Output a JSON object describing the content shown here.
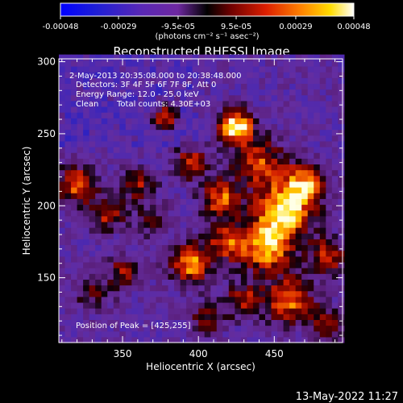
{
  "chart_data": {
    "type": "heatmap",
    "title": "Reconstructed RHESSI Image",
    "xlabel": "Heliocentric X (arcsec)",
    "ylabel": "Heliocentric Y (arcsec)",
    "xlim": [
      308,
      495
    ],
    "ylim": [
      105,
      302
    ],
    "x_ticks": [
      "350",
      "400",
      "450"
    ],
    "x_tick_values": [
      350,
      400,
      450
    ],
    "y_ticks": [
      "150",
      "200",
      "250",
      "300"
    ],
    "y_tick_values": [
      150,
      200,
      250,
      300
    ],
    "colorbar": {
      "unit_label": "(photons cm⁻² s⁻¹ asec⁻²)",
      "ticks": [
        "-0.00048",
        "-0.00029",
        "-9.5e-05",
        "9.5e-05",
        "0.00029",
        "0.00048"
      ],
      "range": [
        -0.00048,
        0.00048
      ]
    },
    "annotations": {
      "time_range": "2-May-2013 20:35:08.000 to 20:38:48.000",
      "detectors": "Detectors: 3F 4F 5F 6F 7F 8F, Att 0",
      "energy_range": "Energy Range: 12.0 - 25.0 keV",
      "clean_label": "Clean",
      "total_counts": "Total counts: 4.30E+03",
      "peak_position": "Position of Peak = [425,255]"
    },
    "peak": [
      425,
      255
    ],
    "grid_step_arcsec": 4,
    "sources": [
      {
        "x": 425,
        "y": 255,
        "amp": 1.0,
        "sigma": 8
      },
      {
        "x": 455,
        "y": 195,
        "amp": 0.95,
        "sigma": 13
      },
      {
        "x": 470,
        "y": 215,
        "amp": 0.75,
        "sigma": 10
      },
      {
        "x": 440,
        "y": 230,
        "amp": 0.6,
        "sigma": 12
      },
      {
        "x": 415,
        "y": 205,
        "amp": 0.7,
        "sigma": 9
      },
      {
        "x": 395,
        "y": 230,
        "amp": 0.55,
        "sigma": 8
      },
      {
        "x": 378,
        "y": 262,
        "amp": 0.55,
        "sigma": 6
      },
      {
        "x": 395,
        "y": 160,
        "amp": 0.75,
        "sigma": 10
      },
      {
        "x": 420,
        "y": 175,
        "amp": 0.65,
        "sigma": 9
      },
      {
        "x": 445,
        "y": 170,
        "amp": 0.8,
        "sigma": 11
      },
      {
        "x": 460,
        "y": 135,
        "amp": 0.7,
        "sigma": 11
      },
      {
        "x": 430,
        "y": 135,
        "amp": 0.5,
        "sigma": 9
      },
      {
        "x": 485,
        "y": 165,
        "amp": 0.6,
        "sigma": 9
      },
      {
        "x": 320,
        "y": 215,
        "amp": 0.7,
        "sigma": 9
      },
      {
        "x": 340,
        "y": 195,
        "amp": 0.55,
        "sigma": 8
      },
      {
        "x": 360,
        "y": 215,
        "amp": 0.5,
        "sigma": 8
      },
      {
        "x": 352,
        "y": 155,
        "amp": 0.45,
        "sigma": 8
      },
      {
        "x": 330,
        "y": 140,
        "amp": 0.35,
        "sigma": 9
      },
      {
        "x": 370,
        "y": 190,
        "amp": 0.35,
        "sigma": 8
      },
      {
        "x": 405,
        "y": 122,
        "amp": 0.4,
        "sigma": 8
      },
      {
        "x": 485,
        "y": 118,
        "amp": 0.45,
        "sigma": 8
      }
    ]
  },
  "footer": {
    "timestamp": "13-May-2022 11:27"
  }
}
